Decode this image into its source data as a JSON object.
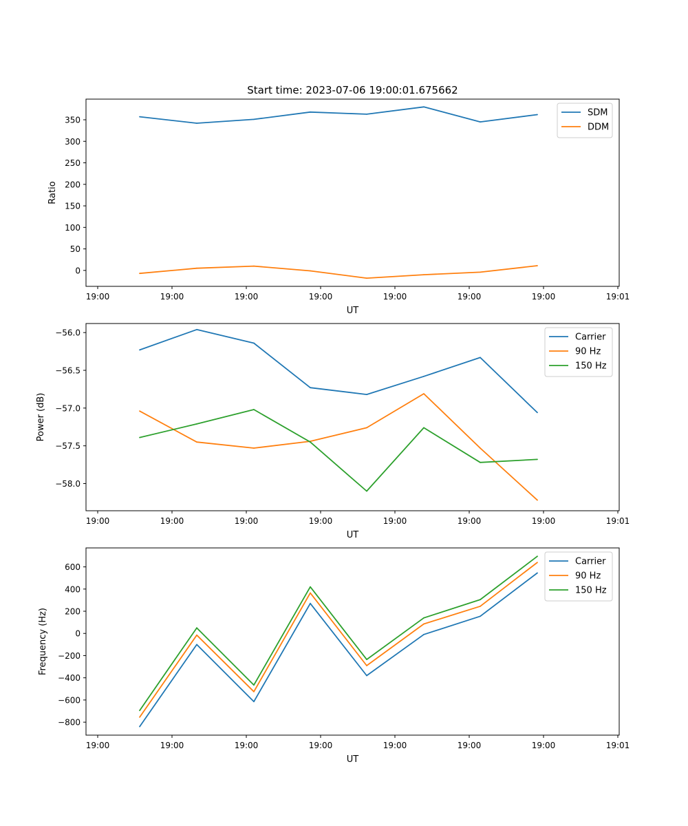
{
  "figure_title": "Start time: 2023-07-06 19:00:01.675662",
  "colors": {
    "blue": "#1f77b4",
    "orange": "#ff7f0e",
    "green": "#2ca02c"
  },
  "chart_data": [
    {
      "type": "line",
      "title": "Start time: 2023-07-06 19:00:01.675662",
      "xlabel": "UT",
      "ylabel": "Ratio",
      "x_tick_labels": [
        "19:00",
        "19:00",
        "19:00",
        "19:00",
        "19:00",
        "19:00",
        "19:00",
        "19:01"
      ],
      "ylim": [
        -37,
        398
      ],
      "y_ticks": [
        0,
        50,
        100,
        150,
        200,
        250,
        300,
        350
      ],
      "y_tick_labels": [
        "0",
        "50",
        "100",
        "150",
        "200",
        "250",
        "300",
        "350"
      ],
      "legend": "top-right",
      "series": [
        {
          "name": "SDM",
          "color": "#1f77b4",
          "values": [
            357,
            342,
            351,
            368,
            363,
            380,
            345,
            362
          ]
        },
        {
          "name": "DDM",
          "color": "#ff7f0e",
          "values": [
            -7,
            5,
            10,
            -1,
            -18,
            -10,
            -4,
            11
          ]
        }
      ]
    },
    {
      "type": "line",
      "title": "",
      "xlabel": "UT",
      "ylabel": "Power (dB)",
      "x_tick_labels": [
        "19:00",
        "19:00",
        "19:00",
        "19:00",
        "19:00",
        "19:00",
        "19:00",
        "19:01"
      ],
      "ylim": [
        -58.36,
        -55.88
      ],
      "y_ticks": [
        -58.0,
        -57.5,
        -57.0,
        -56.5,
        -56.0
      ],
      "y_tick_labels": [
        "−58.0",
        "−57.5",
        "−57.0",
        "−56.5",
        "−56.0"
      ],
      "legend": "top-right",
      "series": [
        {
          "name": "Carrier",
          "color": "#1f77b4",
          "values": [
            -56.23,
            -55.96,
            -56.14,
            -56.73,
            -56.82,
            -56.58,
            -56.33,
            -57.06
          ]
        },
        {
          "name": "90 Hz",
          "color": "#ff7f0e",
          "values": [
            -57.04,
            -57.45,
            -57.53,
            -57.44,
            -57.26,
            -56.81,
            -57.53,
            -58.22
          ]
        },
        {
          "name": "150 Hz",
          "color": "#2ca02c",
          "values": [
            -57.39,
            -57.21,
            -57.02,
            -57.45,
            -58.1,
            -57.26,
            -57.72,
            -57.68
          ]
        }
      ]
    },
    {
      "type": "line",
      "title": "",
      "xlabel": "UT",
      "ylabel": "Frequency (Hz)",
      "x_tick_labels": [
        "19:00",
        "19:00",
        "19:00",
        "19:00",
        "19:00",
        "19:00",
        "19:00",
        "19:01"
      ],
      "ylim": [
        -917,
        771
      ],
      "y_ticks": [
        -800,
        -600,
        -400,
        -200,
        0,
        200,
        400,
        600
      ],
      "y_tick_labels": [
        "−800",
        "−600",
        "−400",
        "−200",
        "0",
        "200",
        "400",
        "600"
      ],
      "legend": "top-right",
      "series": [
        {
          "name": "Carrier",
          "color": "#1f77b4",
          "values": [
            -840,
            -100,
            -615,
            270,
            -380,
            -10,
            155,
            545
          ]
        },
        {
          "name": "90 Hz",
          "color": "#ff7f0e",
          "values": [
            -755,
            -15,
            -525,
            365,
            -290,
            85,
            245,
            640
          ]
        },
        {
          "name": "150 Hz",
          "color": "#2ca02c",
          "values": [
            -695,
            50,
            -465,
            420,
            -235,
            140,
            305,
            695
          ]
        }
      ]
    }
  ]
}
